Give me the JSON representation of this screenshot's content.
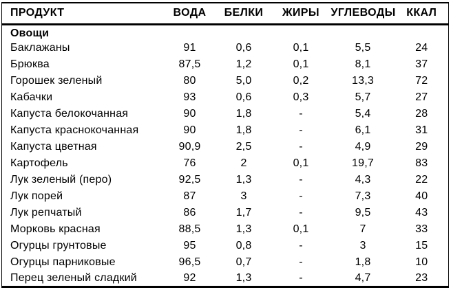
{
  "table": {
    "columns": [
      "ПРОДУКТ",
      "ВОДА",
      "БЕЛКИ",
      "ЖИРЫ",
      "УГЛЕВОДЫ",
      "ККАЛ"
    ],
    "section": "Овощи",
    "rows": [
      [
        "Баклажаны",
        "91",
        "0,6",
        "0,1",
        "5,5",
        "24"
      ],
      [
        "Брюква",
        "87,5",
        "1,2",
        "0,1",
        "8,1",
        "37"
      ],
      [
        "Горошек зеленый",
        "80",
        "5,0",
        "0,2",
        "13,3",
        "72"
      ],
      [
        "Кабачки",
        "93",
        "0,6",
        "0,3",
        "5,7",
        "27"
      ],
      [
        "Капуста белокочанная",
        "90",
        "1,8",
        "-",
        "5,4",
        "28"
      ],
      [
        "Капуста краснокочанная",
        "90",
        "1,8",
        "-",
        "6,1",
        "31"
      ],
      [
        "Капуста цветная",
        "90,9",
        "2,5",
        "-",
        "4,9",
        "29"
      ],
      [
        "Картофель",
        "76",
        "2",
        "0,1",
        "19,7",
        "83"
      ],
      [
        "Лук зеленый (перо)",
        "92,5",
        "1,3",
        "-",
        "4,3",
        "22"
      ],
      [
        "Лук порей",
        "87",
        "3",
        "-",
        "7,3",
        "40"
      ],
      [
        "Лук репчатый",
        "86",
        "1,7",
        "-",
        "9,5",
        "43"
      ],
      [
        "Морковь красная",
        "88,5",
        "1,3",
        "0,1",
        "7",
        "33"
      ],
      [
        "Огурцы грунтовые",
        "95",
        "0,8",
        "-",
        "3",
        "15"
      ],
      [
        "Огурцы парниковые",
        "96,5",
        "0,7",
        "-",
        "1,8",
        "10"
      ],
      [
        "Перец зеленый сладкий",
        "92",
        "1,3",
        "-",
        "4,7",
        "23"
      ]
    ],
    "column_keys": [
      "product",
      "water",
      "protein",
      "fat",
      "carbs",
      "kcal"
    ]
  }
}
